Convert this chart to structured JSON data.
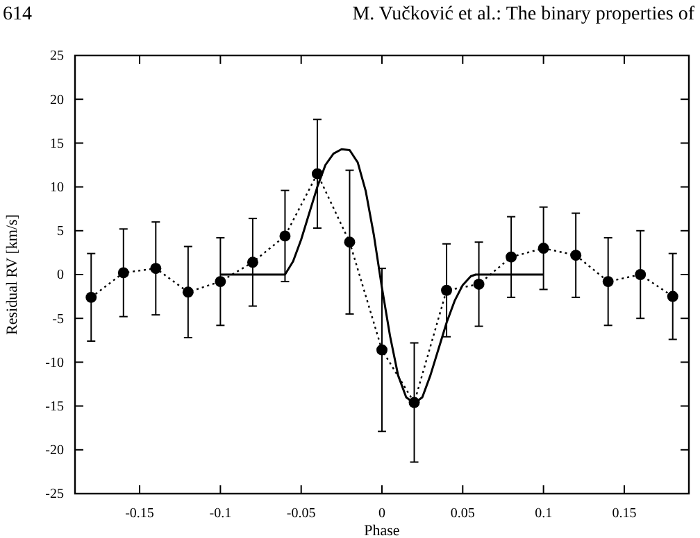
{
  "chart_data": {
    "type": "line",
    "xlabel": "Phase",
    "ylabel": "Residual RV [km/s]",
    "annotations": [
      "614",
      "M. Vučković et al.: The binary properties of"
    ],
    "xlim": [
      -0.19,
      0.19
    ],
    "ylim": [
      -25,
      25
    ],
    "xticks": [
      -0.15,
      -0.1,
      -0.05,
      0,
      0.05,
      0.1,
      0.15
    ],
    "yticks": [
      -25,
      -20,
      -15,
      -10,
      -5,
      0,
      5,
      10,
      15,
      20,
      25
    ],
    "grid": false,
    "series": [
      {
        "color": "#000000",
        "marker": "circle",
        "line_style": "dotted",
        "x": [
          -0.18,
          -0.16,
          -0.14,
          -0.12,
          -0.1,
          -0.08,
          -0.06,
          -0.04,
          -0.02,
          0,
          0.02,
          0.04,
          0.06,
          0.08,
          0.1,
          0.12,
          0.14,
          0.16,
          0.18
        ],
        "values": [
          -2.6,
          0.2,
          0.7,
          -2.0,
          -0.8,
          1.4,
          4.4,
          11.5,
          3.7,
          -8.6,
          -14.6,
          -1.8,
          -1.1,
          2.0,
          3.0,
          2.2,
          -0.8,
          0.0,
          -2.5
        ],
        "errors": [
          5.0,
          5.0,
          5.3,
          5.2,
          5.0,
          5.0,
          5.2,
          6.2,
          8.2,
          9.3,
          6.8,
          5.3,
          4.8,
          4.6,
          4.7,
          4.8,
          5.0,
          5.0,
          4.9
        ]
      },
      {
        "color": "#000000",
        "marker": "none",
        "line_style": "solid",
        "x": [
          -0.1,
          -0.06,
          -0.055,
          -0.05,
          -0.045,
          -0.04,
          -0.035,
          -0.03,
          -0.025,
          -0.02,
          -0.015,
          -0.01,
          -0.005,
          0,
          0.005,
          0.01,
          0.015,
          0.02,
          0.025,
          0.03,
          0.035,
          0.04,
          0.045,
          0.05,
          0.055,
          0.058,
          0.1
        ],
        "values": [
          0,
          0,
          1.5,
          4,
          7,
          10,
          12.5,
          13.8,
          14.3,
          14.2,
          12.8,
          9.5,
          4.5,
          -1.5,
          -7,
          -11.5,
          -14,
          -14.7,
          -14,
          -11.5,
          -8.5,
          -5.5,
          -3,
          -1.2,
          -0.2,
          0,
          0
        ]
      }
    ]
  }
}
